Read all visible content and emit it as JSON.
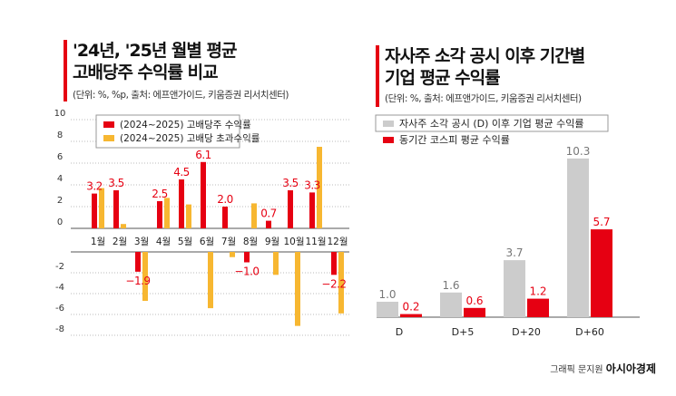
{
  "left": {
    "title_line1": "'24년, '25년 월별 평균",
    "title_line2": "고배당주 수익률 비교",
    "unit": "(단위: %, %p, 출처: 에프앤가이드, 키움증권 리서치센터)"
  },
  "right": {
    "title_line1": "자사주 소각 공시 이후 기간별",
    "title_line2": "기업 평균 수익률",
    "unit": "(단위: %, 출처: 에프앤가이드, 키움증권 리서치센터)"
  },
  "credit": {
    "author": "그래픽 문지원",
    "brand": "아시아경제"
  },
  "colors": {
    "red": "#e60012",
    "orange": "#f7b731",
    "gray": "#cccccc"
  },
  "chart_data": [
    {
      "type": "bar",
      "categories": [
        "1월",
        "2월",
        "3월",
        "4월",
        "5월",
        "6월",
        "7월",
        "8월",
        "9월",
        "10월",
        "11월",
        "12월"
      ],
      "series": [
        {
          "name": "(2024~2025) 고배당주 수익률",
          "color": "#e60012",
          "values": [
            3.2,
            3.5,
            -1.9,
            2.5,
            4.5,
            6.1,
            2.0,
            -1.0,
            0.7,
            3.5,
            3.3,
            -2.2
          ],
          "labeled": true
        },
        {
          "name": "(2024~2025) 고배당 초과수익률",
          "color": "#f7b731",
          "values": [
            3.7,
            0.4,
            -4.7,
            2.8,
            2.2,
            -5.4,
            -0.5,
            2.3,
            -2.2,
            -7.1,
            7.5,
            -5.9
          ]
        }
      ],
      "yticks": [
        10,
        8,
        6,
        4,
        2,
        0,
        -2,
        -4,
        -6,
        -8
      ],
      "ylim": [
        -8,
        10
      ],
      "grid": true,
      "legend": "top-left"
    },
    {
      "type": "bar",
      "categories": [
        "D",
        "D+5",
        "D+20",
        "D+60"
      ],
      "series": [
        {
          "name": "자사주 소각 공시 (D) 이후 기업 평균 수익률",
          "color": "#cccccc",
          "values": [
            1.0,
            1.6,
            3.7,
            10.3
          ]
        },
        {
          "name": "동기간 코스피 평균 수익률",
          "color": "#e60012",
          "values": [
            0.2,
            0.6,
            1.2,
            5.7
          ]
        }
      ],
      "legend": "top-left"
    }
  ]
}
